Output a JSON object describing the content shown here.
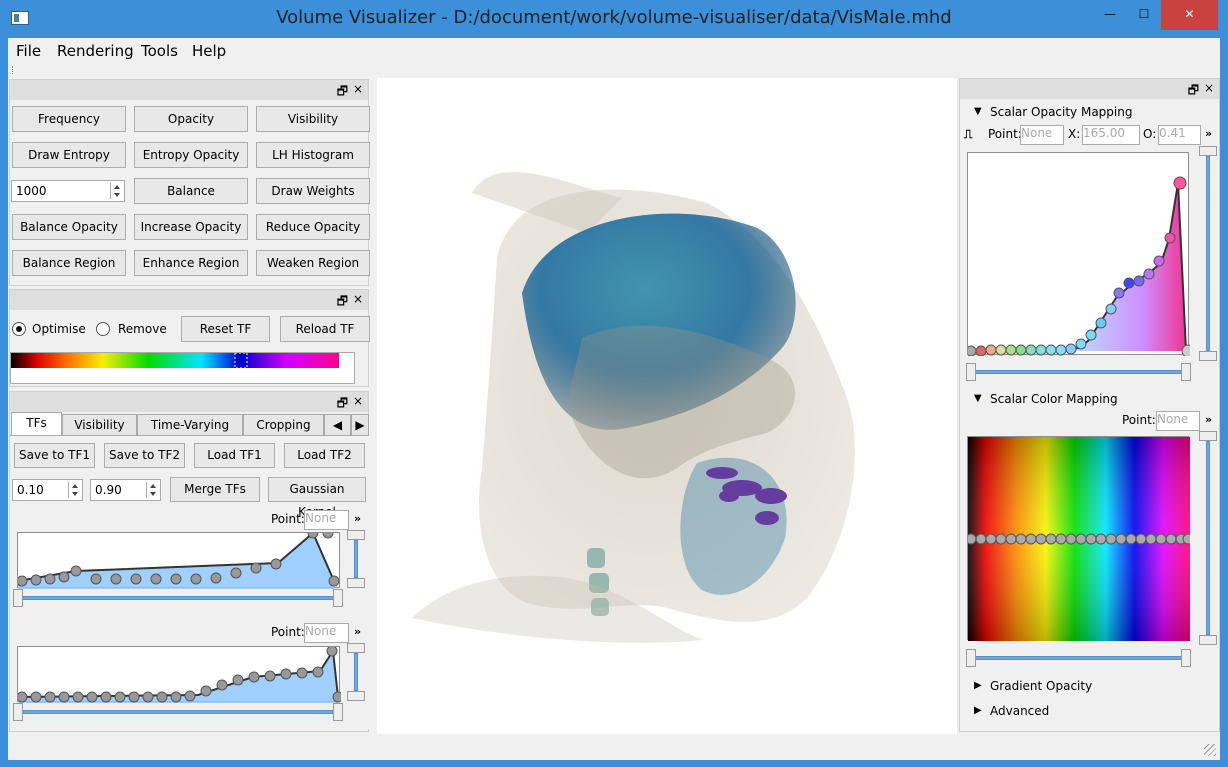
{
  "window": {
    "title": "Volume Visualizer - D:/document/work/volume-visualiser/data/VisMale.mhd",
    "minimize": "—",
    "maximize": "☐",
    "close": "✕"
  },
  "menu": [
    "File",
    "Rendering",
    "Tools",
    "Help"
  ],
  "left_dock": {
    "float_icon": "🗗",
    "close_icon": "×",
    "buttons": [
      [
        "Frequency",
        "Opacity",
        "Visibility"
      ],
      [
        "Draw Entropy",
        "Entropy Opacity",
        "LH Histogram"
      ],
      [
        "Balance",
        "Draw Weights"
      ],
      [
        "Balance Opacity",
        "Increase Opacity",
        "Reduce Opacity"
      ],
      [
        "Balance Region",
        "Enhance Region",
        "Weaken Region"
      ]
    ],
    "spin_value": "1000"
  },
  "region_dock": {
    "options": [
      "Optimise",
      "Remove"
    ],
    "selected": "Optimise",
    "buttons": [
      "Reset TF",
      "Reload TF"
    ]
  },
  "tf_dock": {
    "tabs": [
      "TFs",
      "Visibility",
      "Time-Varying",
      "Cropping"
    ],
    "active_tab": "TFs",
    "buttons": [
      "Save to TF1",
      "Save to TF2",
      "Load TF1",
      "Load TF2",
      "Merge TFs",
      "Gaussian Kernel"
    ],
    "spins": [
      "0.10",
      "0.90"
    ],
    "point_label": "Point:",
    "point_value": "None",
    "more": "»"
  },
  "right_dock": {
    "sections": {
      "opacity": "Scalar Opacity Mapping",
      "color": "Scalar Color Mapping",
      "gradient": "Gradient Opacity",
      "advanced": "Advanced"
    },
    "point_label": "Point:",
    "point_value": "None",
    "x_label": "X:",
    "x_value": "165.00",
    "o_label": "O:",
    "o_value": "0.41",
    "more": "»",
    "color_point_label": "Point:",
    "color_point_value": "None"
  },
  "colors": {
    "titlebar": "#3c8fd9",
    "accent": "#6aa8e4",
    "close": "#c9423f"
  }
}
